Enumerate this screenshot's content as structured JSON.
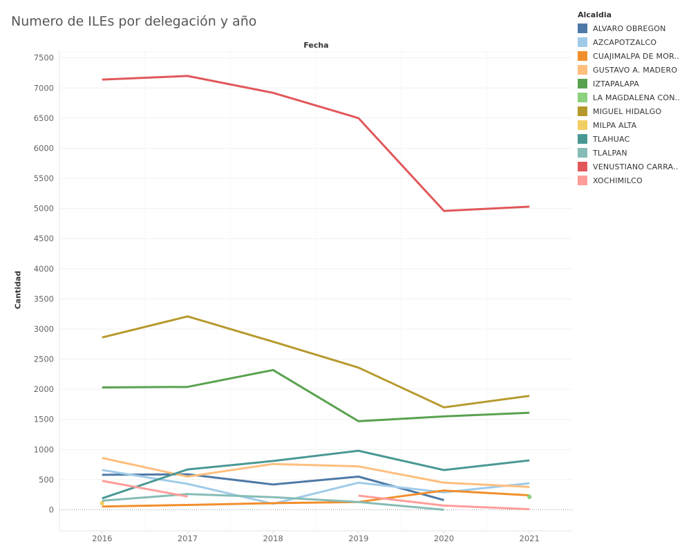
{
  "title": "Numero de ILEs por delegación y año",
  "legend": {
    "title": "Alcaldia",
    "items": [
      {
        "label": "ALVARO OBREGON",
        "color": "#4e79a7"
      },
      {
        "label": "AZCAPOTZALCO",
        "color": "#a0cbe8"
      },
      {
        "label": "CUAJIMALPA DE MOR..",
        "color": "#f28e2b"
      },
      {
        "label": "GUSTAVO A. MADERO",
        "color": "#ffbe7d"
      },
      {
        "label": "IZTAPALAPA",
        "color": "#59a14f"
      },
      {
        "label": "LA MAGDALENA CON..",
        "color": "#8cd17d"
      },
      {
        "label": "MIGUEL HIDALGO",
        "color": "#b6992d"
      },
      {
        "label": "MILPA ALTA",
        "color": "#f1ce63"
      },
      {
        "label": "TLAHUAC",
        "color": "#499894"
      },
      {
        "label": "TLALPAN",
        "color": "#86bcb6"
      },
      {
        "label": "VENUSTIANO CARRA..",
        "color": "#e15759"
      },
      {
        "label": "XOCHIMILCO",
        "color": "#ff9d9a"
      }
    ]
  },
  "chart_data": {
    "type": "line",
    "title": "Numero de ILEs por delegación y año",
    "xlabel": "Fecha",
    "ylabel": "Cantidad",
    "x": [
      2016,
      2017,
      2018,
      2019,
      2020,
      2021
    ],
    "yticks": [
      0,
      500,
      1000,
      1500,
      2000,
      2500,
      3000,
      3500,
      4000,
      4500,
      5000,
      5500,
      6000,
      6500,
      7000,
      7500
    ],
    "ylim": [
      -350,
      7600
    ],
    "grid": true,
    "legend_position": "right",
    "series": [
      {
        "name": "ALVARO OBREGON",
        "color": "#4e79a7",
        "values": [
          580,
          590,
          420,
          550,
          160,
          null
        ]
      },
      {
        "name": "AZCAPOTZALCO",
        "color": "#a0cbe8",
        "values": [
          660,
          430,
          100,
          450,
          290,
          440
        ]
      },
      {
        "name": "CUAJIMALPA DE MOR..",
        "color": "#f28e2b",
        "values": [
          55,
          80,
          110,
          130,
          320,
          240
        ]
      },
      {
        "name": "GUSTAVO A. MADERO",
        "color": "#ffbe7d",
        "values": [
          860,
          550,
          760,
          720,
          450,
          380
        ]
      },
      {
        "name": "IZTAPALAPA",
        "color": "#59a14f",
        "values": [
          2030,
          2040,
          2320,
          1470,
          1550,
          1610
        ]
      },
      {
        "name": "LA MAGDALENA CON..",
        "color": "#8cd17d",
        "values": [
          null,
          null,
          null,
          null,
          null,
          215
        ]
      },
      {
        "name": "MIGUEL HIDALGO",
        "color": "#b6992d",
        "values": [
          2860,
          3210,
          2790,
          2360,
          1700,
          1890
        ]
      },
      {
        "name": "MILPA ALTA",
        "color": "#f1ce63",
        "values": [
          110,
          null,
          null,
          null,
          null,
          null
        ]
      },
      {
        "name": "TLAHUAC",
        "color": "#499894",
        "values": [
          190,
          670,
          810,
          980,
          660,
          820
        ]
      },
      {
        "name": "TLALPAN",
        "color": "#86bcb6",
        "values": [
          150,
          260,
          210,
          130,
          0,
          null
        ]
      },
      {
        "name": "VENUSTIANO CARRA..",
        "color": "#e15759",
        "values": [
          7140,
          7200,
          6920,
          6500,
          4960,
          5030
        ]
      },
      {
        "name": "XOCHIMILCO",
        "color": "#ff9d9a",
        "values": [
          480,
          220,
          null,
          235,
          70,
          10
        ]
      }
    ]
  }
}
